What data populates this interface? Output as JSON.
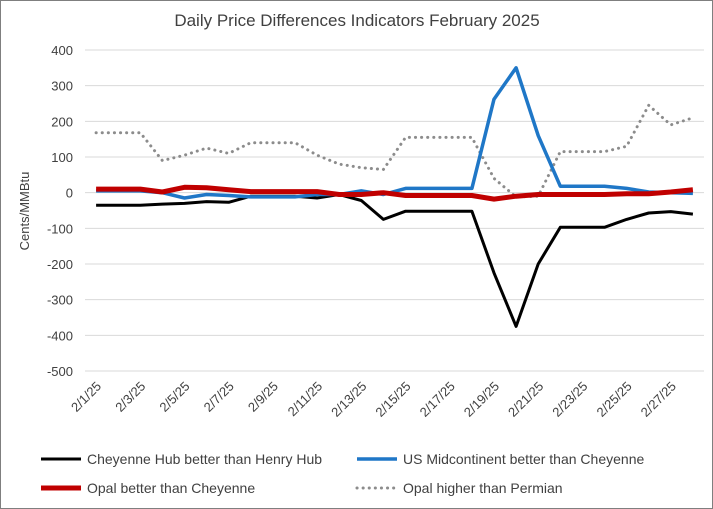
{
  "chart_data": {
    "type": "line",
    "title": "Daily Price Differences Indicators February 2025",
    "ylabel": "Cents/MMBtu",
    "xlabel": "",
    "ylim": [
      -500,
      400
    ],
    "yticks": [
      400,
      300,
      200,
      100,
      0,
      -100,
      -200,
      -300,
      -400,
      -500
    ],
    "grid": "horizontal",
    "legend_position": "bottom",
    "x": [
      "2/1/25",
      "2/2/25",
      "2/3/25",
      "2/4/25",
      "2/5/25",
      "2/6/25",
      "2/7/25",
      "2/8/25",
      "2/9/25",
      "2/10/25",
      "2/11/25",
      "2/12/25",
      "2/13/25",
      "2/14/25",
      "2/15/25",
      "2/16/25",
      "2/17/25",
      "2/18/25",
      "2/19/25",
      "2/20/25",
      "2/21/25",
      "2/22/25",
      "2/23/25",
      "2/24/25",
      "2/25/25",
      "2/26/25",
      "2/27/25",
      "2/28/25"
    ],
    "xtick_labels": [
      "2/1/25",
      "2/3/25",
      "2/5/25",
      "2/7/25",
      "2/9/25",
      "2/11/25",
      "2/13/25",
      "2/15/25",
      "2/17/25",
      "2/19/25",
      "2/21/25",
      "2/23/25",
      "2/25/25",
      "2/27/25"
    ],
    "series": [
      {
        "name": "Cheyenne Hub better than Henry Hub",
        "color": "#000000",
        "style": "solid",
        "width": 3,
        "values": [
          -35,
          -35,
          -35,
          -32,
          -30,
          -25,
          -27,
          -10,
          -10,
          -10,
          -15,
          -5,
          -22,
          -75,
          -52,
          -52,
          -52,
          -52,
          -225,
          -375,
          -200,
          -97,
          -97,
          -97,
          -75,
          -57,
          -53,
          -60
        ]
      },
      {
        "name": "US Midcontinent better than Cheyenne",
        "color": "#1f77c7",
        "style": "solid",
        "width": 3.5,
        "values": [
          5,
          5,
          5,
          0,
          -15,
          -5,
          -8,
          -12,
          -12,
          -12,
          -5,
          -5,
          5,
          -5,
          12,
          12,
          12,
          12,
          262,
          350,
          160,
          18,
          18,
          18,
          12,
          2,
          0,
          -2
        ]
      },
      {
        "name": "Opal better than Cheyenne",
        "color": "#c00000",
        "style": "solid",
        "width": 5,
        "values": [
          10,
          10,
          10,
          2,
          15,
          14,
          8,
          3,
          3,
          3,
          3,
          -5,
          -5,
          0,
          -8,
          -8,
          -8,
          -8,
          -18,
          -10,
          -5,
          -5,
          -5,
          -5,
          -3,
          -3,
          2,
          8
        ]
      },
      {
        "name": "Opal higher than Permian",
        "color": "#8c8c8c",
        "style": "dotted",
        "width": 3,
        "values": [
          168,
          168,
          168,
          90,
          105,
          125,
          110,
          140,
          140,
          140,
          105,
          80,
          70,
          65,
          155,
          155,
          155,
          155,
          40,
          -12,
          -10,
          115,
          115,
          115,
          130,
          245,
          190,
          210
        ]
      }
    ]
  }
}
